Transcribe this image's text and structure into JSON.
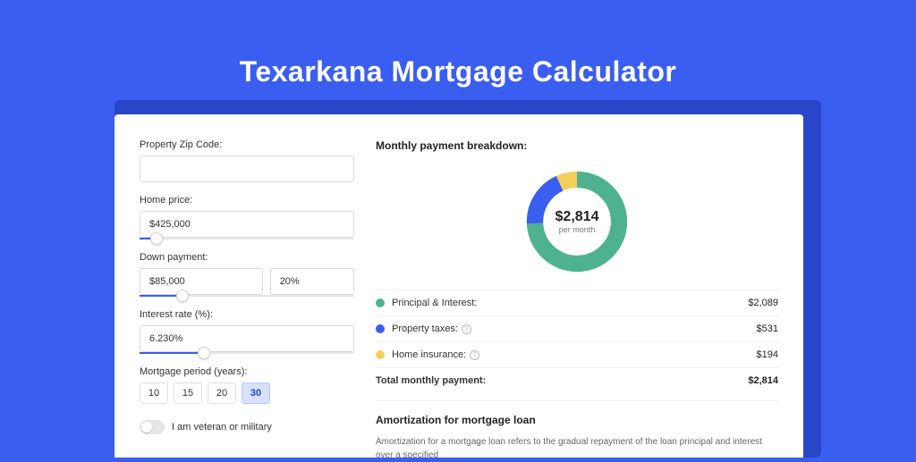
{
  "page": {
    "title": "Texarkana Mortgage Calculator",
    "background_color": "#3a5ef0",
    "shadow_color": "#2945c8",
    "card_bg": "#ffffff"
  },
  "form": {
    "zip": {
      "label": "Property Zip Code:",
      "value": ""
    },
    "home_price": {
      "label": "Home price:",
      "value": "$425,000",
      "slider_pct": 8
    },
    "down_payment": {
      "label": "Down payment:",
      "amount": "$85,000",
      "percent": "20%",
      "slider_pct": 20
    },
    "interest_rate": {
      "label": "Interest rate (%):",
      "value": "6.230%",
      "slider_pct": 30
    },
    "period": {
      "label": "Mortgage period (years):",
      "options": [
        "10",
        "15",
        "20",
        "30"
      ],
      "selected": "30"
    },
    "veteran": {
      "label": "I am veteran or military",
      "on": false
    }
  },
  "breakdown": {
    "heading": "Monthly payment breakdown:",
    "donut": {
      "total_label": "$2,814",
      "sub_label": "per month",
      "segments": [
        {
          "key": "pi",
          "pct": 74.2,
          "color": "#4fb28f"
        },
        {
          "key": "tax",
          "pct": 18.9,
          "color": "#3a5ef0"
        },
        {
          "key": "ins",
          "pct": 6.9,
          "color": "#f5cf5a"
        }
      ],
      "thickness": 16,
      "bg": "#ffffff"
    },
    "rows": [
      {
        "dot": "#4fb28f",
        "label": "Principal & Interest:",
        "info": false,
        "value": "$2,089"
      },
      {
        "dot": "#3a5ef0",
        "label": "Property taxes:",
        "info": true,
        "value": "$531"
      },
      {
        "dot": "#f5cf5a",
        "label": "Home insurance:",
        "info": true,
        "value": "$194"
      }
    ],
    "total": {
      "label": "Total monthly payment:",
      "value": "$2,814"
    }
  },
  "amortization": {
    "heading": "Amortization for mortgage loan",
    "body": "Amortization for a mortgage loan refers to the gradual repayment of the loan principal and interest over a specified"
  }
}
